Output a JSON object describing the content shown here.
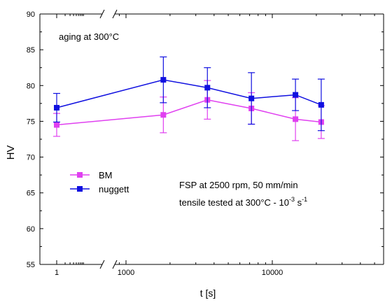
{
  "chart_data": {
    "type": "line",
    "xlabel": "t [s]",
    "ylabel": "HV",
    "x_scale": "log (broken axis)",
    "y_ticks": [
      55,
      60,
      65,
      70,
      75,
      80,
      85,
      90
    ],
    "ylim": [
      55,
      90
    ],
    "x_tick_labels": [
      "1",
      "1000",
      "10000"
    ],
    "grid": false,
    "legend_position": "lower-left",
    "annotations": {
      "aging": "aging at 300°C",
      "fsp": "FSP at 2500 rpm, 50 mm/min",
      "tensile": "tensile tested at 300°C - 10",
      "tensile_exp1": "-3",
      "tensile_unit": " s",
      "tensile_exp2": "-1"
    },
    "x": [
      1,
      1800,
      3600,
      7200,
      14400,
      21600
    ],
    "series": [
      {
        "name": "BM",
        "color": "#e040f0",
        "values": [
          74.5,
          75.9,
          78.0,
          76.8,
          75.3,
          74.9
        ],
        "err_low": [
          1.6,
          2.5,
          2.7,
          2.2,
          3.0,
          2.3
        ],
        "err_high": [
          1.6,
          2.5,
          2.7,
          2.2,
          3.0,
          2.3
        ]
      },
      {
        "name": "nuggett",
        "color": "#1010e0",
        "values": [
          76.9,
          80.8,
          79.7,
          78.2,
          78.7,
          77.3
        ],
        "err_low": [
          2.0,
          3.2,
          2.8,
          3.6,
          2.2,
          3.6
        ],
        "err_high": [
          2.0,
          3.2,
          2.8,
          3.6,
          2.2,
          3.6
        ]
      }
    ]
  }
}
